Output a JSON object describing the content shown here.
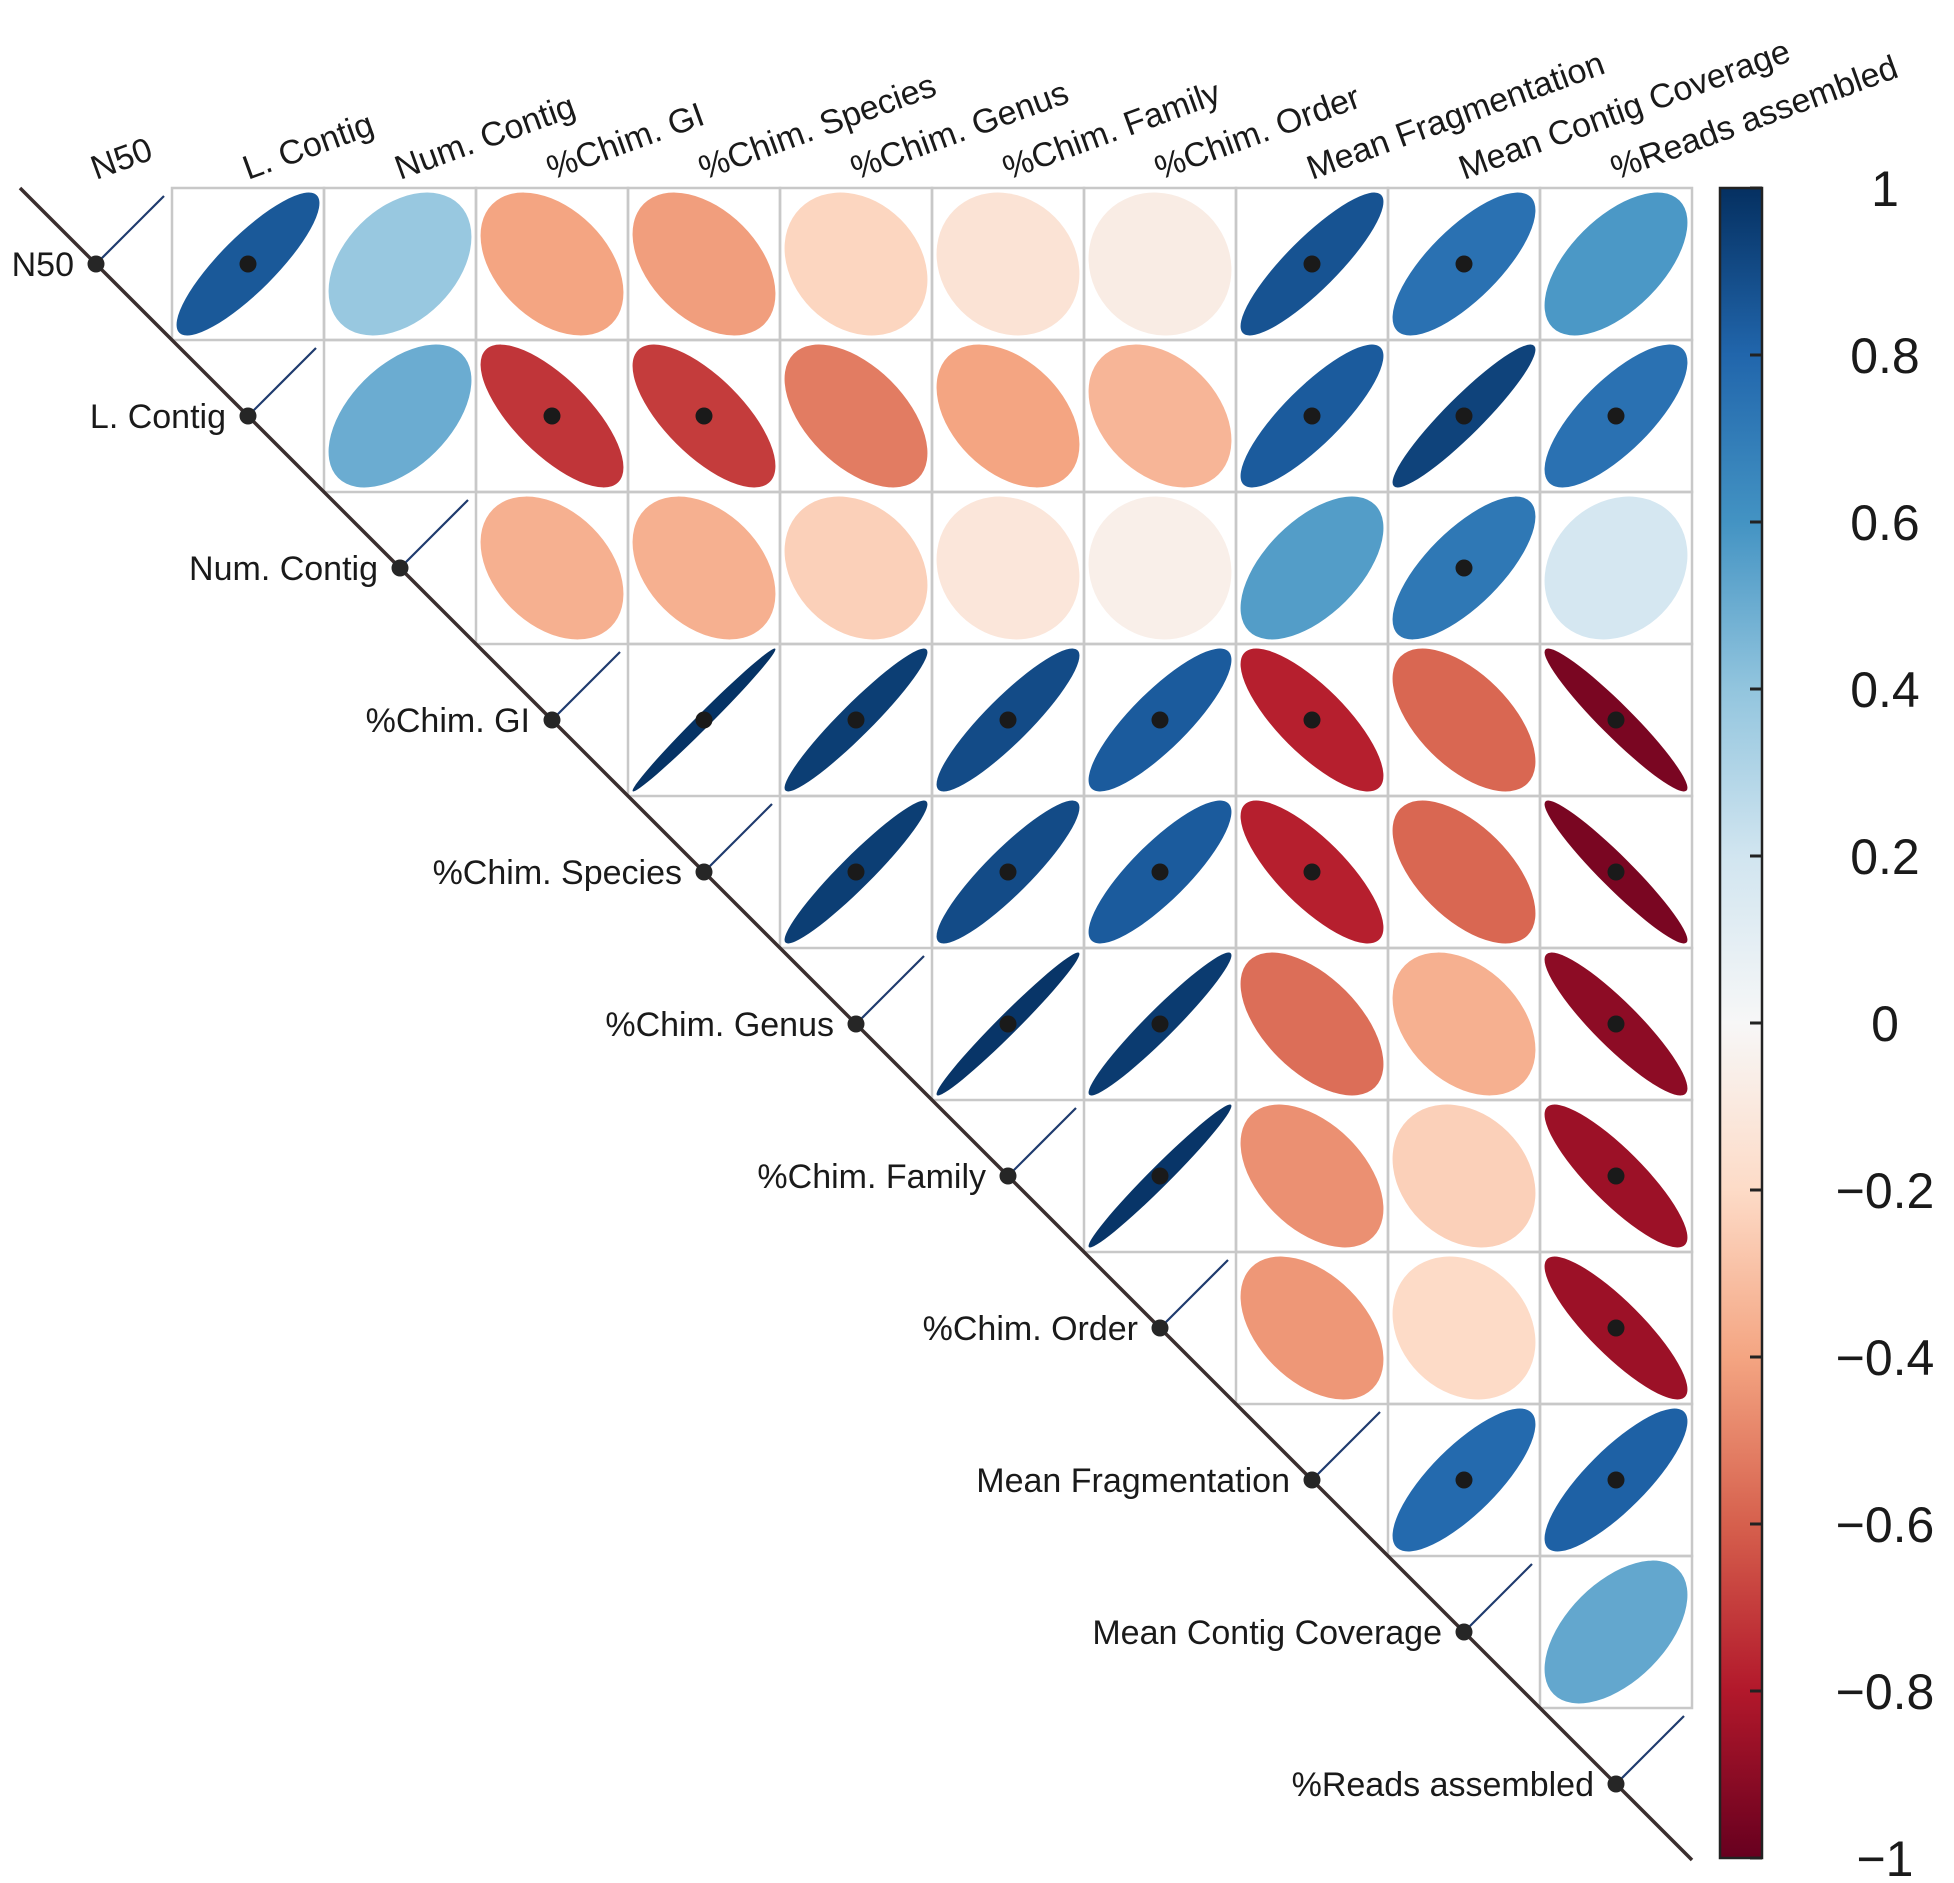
{
  "chart_data": {
    "type": "correlation-matrix",
    "title": "",
    "variables": [
      "N50",
      "L. Contig",
      "Num. Contig",
      "%Chim. GI",
      "%Chim. Species",
      "%Chim. Genus",
      "%Chim. Family",
      "%Chim. Order",
      "Mean Fragmentation",
      "Mean Contig Coverage",
      "%Reads assembled"
    ],
    "matrix": [
      [
        1.0,
        0.85,
        0.38,
        -0.4,
        -0.42,
        -0.22,
        -0.14,
        -0.08,
        0.87,
        0.75,
        0.58
      ],
      [
        0.85,
        1.0,
        0.5,
        -0.72,
        -0.7,
        -0.52,
        -0.4,
        -0.34,
        0.84,
        0.93,
        0.75
      ],
      [
        0.38,
        0.5,
        1.0,
        -0.36,
        -0.36,
        -0.24,
        -0.12,
        -0.06,
        0.56,
        0.72,
        0.18
      ],
      [
        -0.4,
        -0.72,
        -0.36,
        1.0,
        0.99,
        0.95,
        0.9,
        0.84,
        -0.78,
        -0.58,
        -0.95
      ],
      [
        -0.42,
        -0.7,
        -0.36,
        0.99,
        1.0,
        0.95,
        0.9,
        0.84,
        -0.78,
        -0.58,
        -0.95
      ],
      [
        -0.22,
        -0.52,
        -0.24,
        0.95,
        0.95,
        1.0,
        0.98,
        0.96,
        -0.56,
        -0.36,
        -0.9
      ],
      [
        -0.14,
        -0.4,
        -0.12,
        0.9,
        0.9,
        0.98,
        1.0,
        0.98,
        -0.46,
        -0.24,
        -0.86
      ],
      [
        -0.08,
        -0.34,
        -0.06,
        0.84,
        0.84,
        0.96,
        0.98,
        1.0,
        -0.44,
        -0.2,
        -0.86
      ],
      [
        0.87,
        0.84,
        0.56,
        -0.78,
        -0.78,
        -0.56,
        -0.46,
        -0.44,
        1.0,
        0.78,
        0.82
      ],
      [
        0.75,
        0.93,
        0.72,
        -0.58,
        -0.58,
        -0.36,
        -0.24,
        -0.2,
        0.78,
        1.0,
        0.52
      ],
      [
        0.58,
        0.75,
        0.18,
        -0.95,
        -0.95,
        -0.9,
        -0.86,
        -0.86,
        0.82,
        0.52,
        1.0
      ]
    ],
    "significance_marked": [
      [
        false,
        true,
        false,
        false,
        false,
        false,
        false,
        false,
        true,
        true,
        false
      ],
      [
        true,
        false,
        false,
        true,
        true,
        false,
        false,
        false,
        true,
        true,
        true
      ],
      [
        false,
        false,
        false,
        false,
        false,
        false,
        false,
        false,
        false,
        true,
        false
      ],
      [
        false,
        true,
        false,
        false,
        true,
        true,
        true,
        true,
        true,
        false,
        true
      ],
      [
        false,
        true,
        false,
        true,
        false,
        true,
        true,
        true,
        true,
        false,
        true
      ],
      [
        false,
        false,
        false,
        true,
        true,
        false,
        true,
        true,
        false,
        false,
        true
      ],
      [
        false,
        false,
        false,
        true,
        true,
        true,
        false,
        true,
        false,
        false,
        true
      ],
      [
        false,
        false,
        false,
        true,
        true,
        true,
        true,
        false,
        false,
        false,
        true
      ],
      [
        true,
        true,
        false,
        true,
        true,
        false,
        false,
        false,
        false,
        true,
        true
      ],
      [
        true,
        true,
        true,
        false,
        false,
        false,
        false,
        false,
        true,
        false,
        false
      ],
      [
        false,
        true,
        false,
        true,
        true,
        true,
        true,
        true,
        true,
        false,
        false
      ]
    ],
    "layout": "upper-triangle",
    "color_scale": {
      "range": [
        -1,
        1
      ],
      "ticks": [
        "1",
        "0.8",
        "0.6",
        "0.4",
        "0.2",
        "0",
        "−0.2",
        "−0.4",
        "−0.6",
        "−0.8",
        "−1"
      ],
      "tick_values": [
        1,
        0.8,
        0.6,
        0.4,
        0.2,
        0,
        -0.2,
        -0.4,
        -0.6,
        -0.8,
        -1
      ],
      "stops": [
        "#67001f",
        "#b2182b",
        "#d6604d",
        "#f4a582",
        "#fddbc7",
        "#f7f7f7",
        "#d1e5f0",
        "#92c5de",
        "#4393c3",
        "#2166ac",
        "#053061"
      ]
    }
  }
}
